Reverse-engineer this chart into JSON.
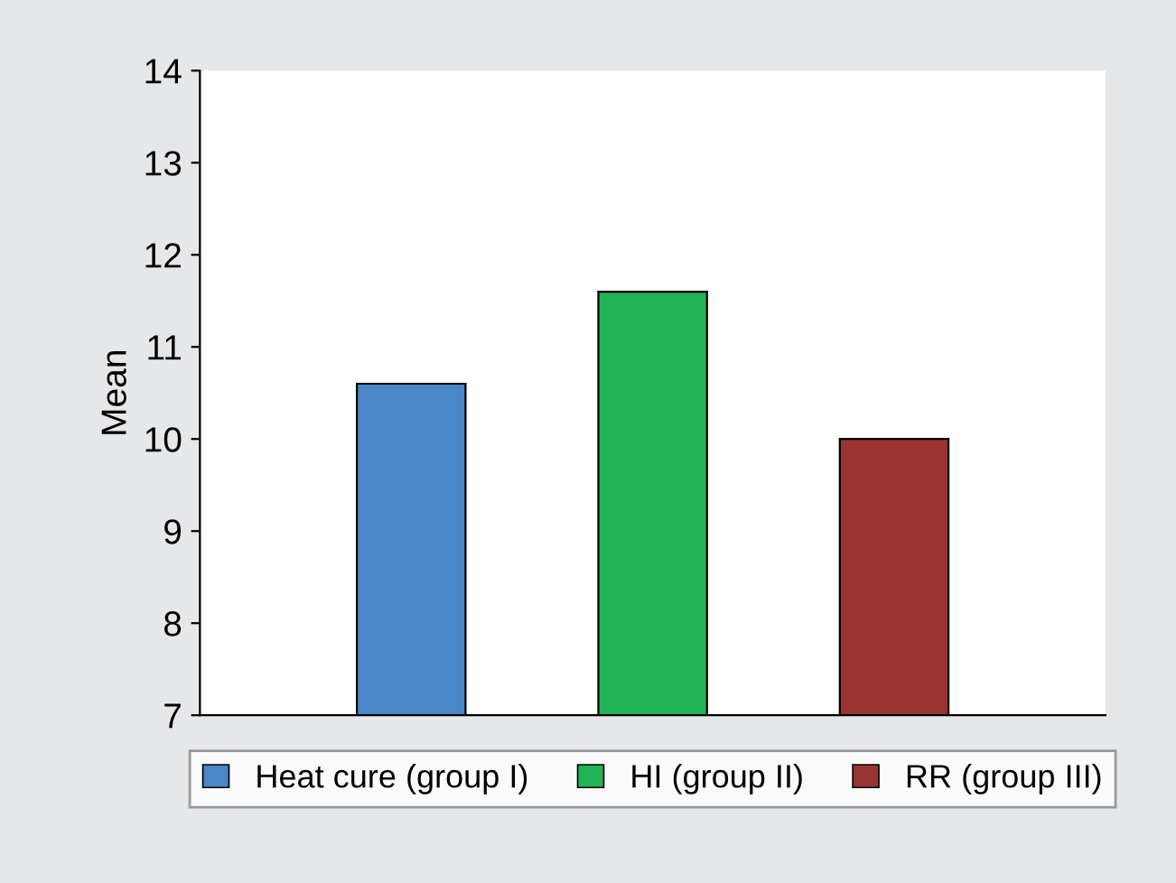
{
  "chart_data": {
    "type": "bar",
    "ylabel": "Mean",
    "categories": [
      null
    ],
    "series": [
      {
        "name": "Heat cure (group I)",
        "color": "#4a86c8",
        "values": [
          10.6
        ]
      },
      {
        "name": "HI (group II)",
        "color": "#22b357",
        "values": [
          11.6
        ]
      },
      {
        "name": "RR (group III)",
        "color": "#9a3432",
        "values": [
          10.0
        ]
      }
    ],
    "ylim": [
      7,
      14
    ],
    "yticks": [
      7,
      8,
      9,
      10,
      11,
      12,
      13,
      14
    ],
    "grid": false,
    "legend": "bottom"
  }
}
